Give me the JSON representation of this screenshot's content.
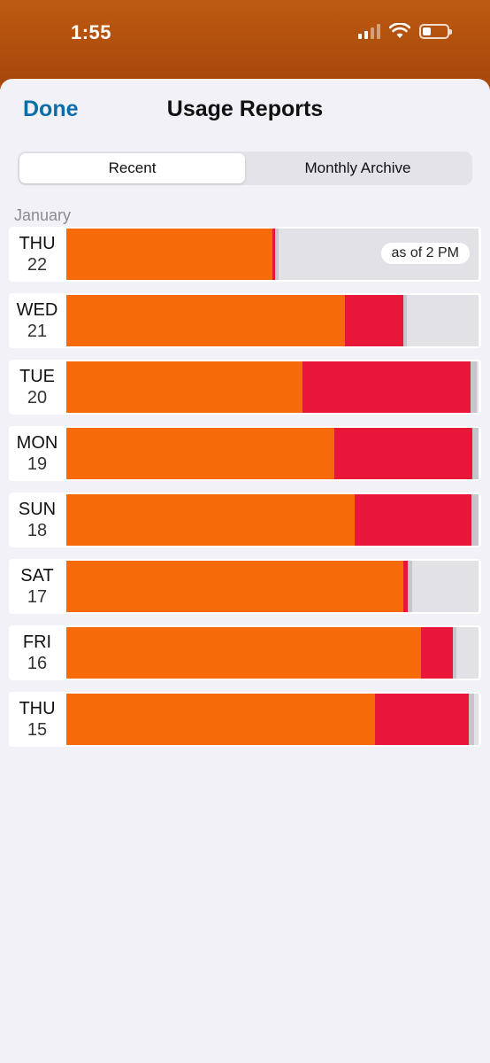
{
  "status": {
    "time": "1:55"
  },
  "header": {
    "done_label": "Done",
    "title": "Usage Reports"
  },
  "tabs": [
    {
      "label": "Recent",
      "active": true
    },
    {
      "label": "Monthly Archive",
      "active": false
    }
  ],
  "month": "January",
  "colors": {
    "primary": "#f66a0a",
    "secondary": "#e8173a",
    "tertiary": "#c8c4cc",
    "remaining": "#e2e1e5"
  },
  "days": [
    {
      "dow": "THU",
      "day": "22",
      "note": "as of 2 PM",
      "orange": 0.5,
      "red": 0.007,
      "gray": 0.009
    },
    {
      "dow": "WED",
      "day": "21",
      "orange": 0.677,
      "red": 0.141,
      "gray": 0.009
    },
    {
      "dow": "TUE",
      "day": "20",
      "orange": 0.573,
      "red": 0.408,
      "gray": 0.015
    },
    {
      "dow": "MON",
      "day": "19",
      "orange": 0.651,
      "red": 0.333,
      "gray": 0.015
    },
    {
      "dow": "SUN",
      "day": "18",
      "orange": 0.7,
      "red": 0.283,
      "gray": 0.017
    },
    {
      "dow": "SAT",
      "day": "17",
      "orange": 0.818,
      "red": 0.011,
      "gray": 0.009
    },
    {
      "dow": "FRI",
      "day": "16",
      "orange": 0.86,
      "red": 0.077,
      "gray": 0.009
    },
    {
      "dow": "THU",
      "day": "15",
      "orange": 0.749,
      "red": 0.228,
      "gray": 0.013
    }
  ]
}
